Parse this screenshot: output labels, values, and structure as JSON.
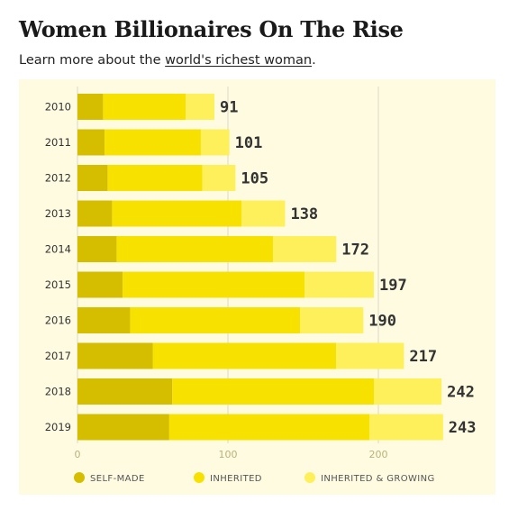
{
  "header": {
    "title": "Women Billionaires On The Rise",
    "subtitle_prefix": "Learn more about the ",
    "subtitle_link": "world's richest woman",
    "subtitle_suffix": "."
  },
  "colors": {
    "background": "#fffbe0",
    "self_made": "#d5be00",
    "inherited": "#f7e100",
    "inherited_growing": "#fdf05a",
    "grid": "#d8d8c8"
  },
  "chart_data": {
    "type": "bar",
    "orientation": "horizontal",
    "stacked": true,
    "categories": [
      "2010",
      "2011",
      "2012",
      "2013",
      "2014",
      "2015",
      "2016",
      "2017",
      "2018",
      "2019"
    ],
    "series": [
      {
        "name": "SELF-MADE",
        "values": [
          17,
          18,
          20,
          23,
          26,
          30,
          35,
          50,
          63,
          61
        ]
      },
      {
        "name": "INHERITED",
        "values": [
          55,
          64,
          63,
          86,
          104,
          121,
          113,
          122,
          134,
          133
        ]
      },
      {
        "name": "INHERITED & GROWING",
        "values": [
          19,
          19,
          22,
          29,
          42,
          46,
          42,
          45,
          45,
          49
        ]
      }
    ],
    "totals": [
      91,
      101,
      105,
      138,
      172,
      197,
      190,
      217,
      242,
      243
    ],
    "xticks": [
      0,
      100,
      200
    ],
    "xlim": [
      0,
      260
    ],
    "grid": true,
    "legend_position": "bottom"
  }
}
